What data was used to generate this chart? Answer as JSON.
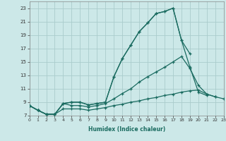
{
  "xlabel": "Humidex (Indice chaleur)",
  "bg_color": "#cce8e8",
  "grid_color": "#aacccc",
  "line_color": "#1a6b60",
  "xlim": [
    0,
    23
  ],
  "ylim": [
    7,
    24
  ],
  "xticks": [
    0,
    1,
    2,
    3,
    4,
    5,
    6,
    7,
    8,
    9,
    10,
    11,
    12,
    13,
    14,
    15,
    16,
    17,
    18,
    19,
    20,
    21,
    22,
    23
  ],
  "yticks": [
    7,
    9,
    11,
    13,
    15,
    17,
    19,
    21,
    23
  ],
  "line1_x": [
    0,
    1,
    2,
    3,
    4,
    5,
    6,
    7,
    8,
    9,
    10,
    11,
    12,
    13,
    14,
    15,
    16,
    17,
    18,
    19
  ],
  "line1_y": [
    8.5,
    7.8,
    7.2,
    7.2,
    8.8,
    9.0,
    9.0,
    8.6,
    8.8,
    9.0,
    12.8,
    15.5,
    17.5,
    19.5,
    20.8,
    22.2,
    22.5,
    23.0,
    18.2,
    16.2
  ],
  "line2_x": [
    0,
    1,
    2,
    3,
    4,
    5,
    6,
    7,
    8,
    9,
    10,
    11,
    12,
    13,
    14,
    15,
    16,
    17,
    18,
    19,
    20,
    21
  ],
  "line2_y": [
    8.5,
    7.8,
    7.2,
    7.2,
    8.8,
    9.0,
    9.0,
    8.6,
    8.8,
    9.0,
    12.8,
    15.5,
    17.5,
    19.5,
    20.8,
    22.2,
    22.5,
    23.0,
    18.2,
    14.2,
    10.5,
    10.0
  ],
  "line3_x": [
    0,
    1,
    2,
    3,
    4,
    5,
    6,
    7,
    8,
    9,
    10,
    11,
    12,
    13,
    14,
    15,
    16,
    17,
    18,
    19,
    20,
    21,
    22
  ],
  "line3_y": [
    8.5,
    7.8,
    7.2,
    7.2,
    8.8,
    8.5,
    8.5,
    8.3,
    8.5,
    8.8,
    9.5,
    10.3,
    11.0,
    12.0,
    12.8,
    13.5,
    14.2,
    15.0,
    15.8,
    14.0,
    11.5,
    10.2,
    9.8
  ],
  "line4_x": [
    0,
    1,
    2,
    3,
    4,
    5,
    6,
    7,
    8,
    9,
    10,
    11,
    12,
    13,
    14,
    15,
    16,
    17,
    18,
    19,
    20,
    21,
    22,
    23
  ],
  "line4_y": [
    8.5,
    7.8,
    7.2,
    7.2,
    8.0,
    8.0,
    8.0,
    7.8,
    8.0,
    8.2,
    8.5,
    8.7,
    9.0,
    9.2,
    9.5,
    9.7,
    10.0,
    10.2,
    10.5,
    10.7,
    10.8,
    10.2,
    9.8,
    9.5
  ]
}
